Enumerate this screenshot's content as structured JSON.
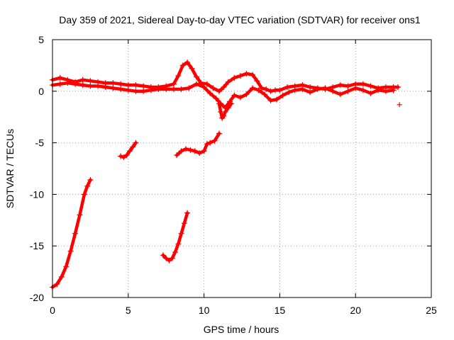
{
  "chart_data": {
    "type": "scatter",
    "title": "Day 359 of 2021, Sidereal Day-to-day VTEC variation (SDTVAR) for receiver ons1",
    "xlabel": "GPS time / hours",
    "ylabel": "SDTVAR / TECUs",
    "xlim": [
      0,
      25
    ],
    "ylim": [
      -20,
      5
    ],
    "xticks": [
      0,
      5,
      10,
      15,
      20,
      25
    ],
    "yticks": [
      5,
      0,
      -5,
      -10,
      -15,
      -20
    ],
    "xtick_labels": [
      "0",
      "5",
      "10",
      "15",
      "20",
      "25"
    ],
    "ytick_labels": [
      "5",
      "0",
      "-5",
      "-10",
      "-15",
      "-20"
    ],
    "grid": true,
    "legend": "none",
    "marker": "+",
    "color": "#ff0000",
    "series": [
      {
        "name": "main-band-upper",
        "x": [
          0.0,
          0.5,
          1.0,
          1.5,
          2.0,
          2.5,
          3.0,
          3.5,
          4.0,
          4.5,
          5.0,
          5.5,
          6.0,
          6.5,
          7.0,
          7.5,
          8.0,
          8.3,
          8.6,
          8.9,
          9.2,
          9.5,
          9.8,
          10.2,
          10.6,
          11.0,
          11.3,
          11.6,
          12.0,
          12.4,
          12.8,
          13.2,
          13.5,
          13.8,
          14.1,
          14.4,
          14.7,
          15.0,
          15.5,
          16.0,
          16.5,
          17.0,
          17.5,
          18.0,
          18.5,
          19.0,
          19.5,
          20.0,
          20.5,
          21.0,
          21.5,
          22.0,
          22.5,
          22.8
        ],
        "y": [
          1.1,
          1.3,
          1.1,
          0.9,
          1.1,
          1.0,
          0.9,
          0.8,
          0.8,
          0.7,
          0.6,
          0.6,
          0.5,
          0.4,
          0.4,
          0.5,
          0.7,
          1.5,
          2.5,
          2.8,
          2.2,
          1.4,
          0.8,
          0.7,
          0.3,
          0.0,
          0.4,
          0.9,
          1.3,
          1.5,
          1.7,
          1.6,
          1.0,
          0.3,
          0.2,
          0.0,
          0.1,
          0.1,
          0.4,
          0.5,
          0.6,
          0.4,
          0.3,
          0.2,
          0.4,
          0.6,
          0.5,
          0.7,
          0.7,
          0.5,
          0.3,
          0.4,
          0.4,
          0.4
        ]
      },
      {
        "name": "main-band-lower",
        "x": [
          0.0,
          0.5,
          1.0,
          1.5,
          2.0,
          2.5,
          3.0,
          3.5,
          4.0,
          4.5,
          5.0,
          5.5,
          6.0,
          6.5,
          7.0,
          7.5,
          8.0,
          8.5,
          9.0,
          9.5,
          10.0,
          10.4,
          10.8,
          11.1,
          11.4,
          11.7,
          12.0,
          12.4,
          12.8,
          13.2,
          13.6,
          14.0,
          14.4,
          14.8,
          15.2,
          15.6,
          16.0,
          16.5,
          17.0,
          17.5,
          18.0,
          18.5,
          19.0,
          19.5,
          20.0,
          20.5,
          21.0,
          21.5,
          22.0,
          22.5
        ],
        "y": [
          0.6,
          0.7,
          0.8,
          0.7,
          0.6,
          0.5,
          0.5,
          0.4,
          0.3,
          0.2,
          0.1,
          0.0,
          0.0,
          0.1,
          0.2,
          0.2,
          0.2,
          0.2,
          0.3,
          0.7,
          0.4,
          -0.2,
          -0.7,
          -1.2,
          -1.6,
          -1.0,
          -0.4,
          -0.6,
          -0.3,
          0.3,
          0.1,
          -0.3,
          -0.9,
          -0.8,
          -0.4,
          -0.1,
          0.1,
          0.2,
          -0.1,
          0.2,
          0.3,
          0.0,
          -0.3,
          0.0,
          0.3,
          0.1,
          -0.2,
          0.1,
          0.0,
          0.1
        ]
      },
      {
        "name": "dip-11h",
        "x": [
          11.0,
          11.1,
          11.2,
          11.3,
          11.4,
          11.6,
          11.8
        ],
        "y": [
          -1.2,
          -2.0,
          -2.6,
          -2.4,
          -2.0,
          -1.6,
          -1.2
        ]
      },
      {
        "name": "arc-0h-ascending",
        "x": [
          0.0,
          0.3,
          0.6,
          0.9,
          1.2,
          1.5,
          1.8,
          2.1,
          2.3,
          2.5
        ],
        "y": [
          -19.0,
          -18.7,
          -18.0,
          -17.0,
          -15.5,
          -13.8,
          -12.0,
          -10.0,
          -9.2,
          -8.6
        ]
      },
      {
        "name": "arc-4h-short",
        "x": [
          4.5,
          4.7,
          4.9,
          5.1,
          5.3,
          5.5
        ],
        "y": [
          -6.3,
          -6.4,
          -6.2,
          -5.8,
          -5.4,
          -5.0
        ]
      },
      {
        "name": "arc-8h-mid",
        "x": [
          8.2,
          8.5,
          8.8,
          9.1,
          9.4,
          9.7,
          10.0,
          10.2,
          10.4,
          10.7,
          11.0
        ],
        "y": [
          -6.2,
          -5.8,
          -5.6,
          -5.7,
          -5.8,
          -6.0,
          -5.8,
          -5.1,
          -5.0,
          -4.8,
          -4.1
        ]
      },
      {
        "name": "arc-7h-lower",
        "x": [
          7.3,
          7.5,
          7.7,
          7.9,
          8.1,
          8.3,
          8.5,
          8.7,
          8.9
        ],
        "y": [
          -15.9,
          -16.2,
          -16.4,
          -16.2,
          -15.6,
          -14.8,
          -13.8,
          -12.8,
          -11.8
        ]
      }
    ],
    "outliers": {
      "x": [
        22.9
      ],
      "y": [
        -1.3
      ]
    }
  }
}
